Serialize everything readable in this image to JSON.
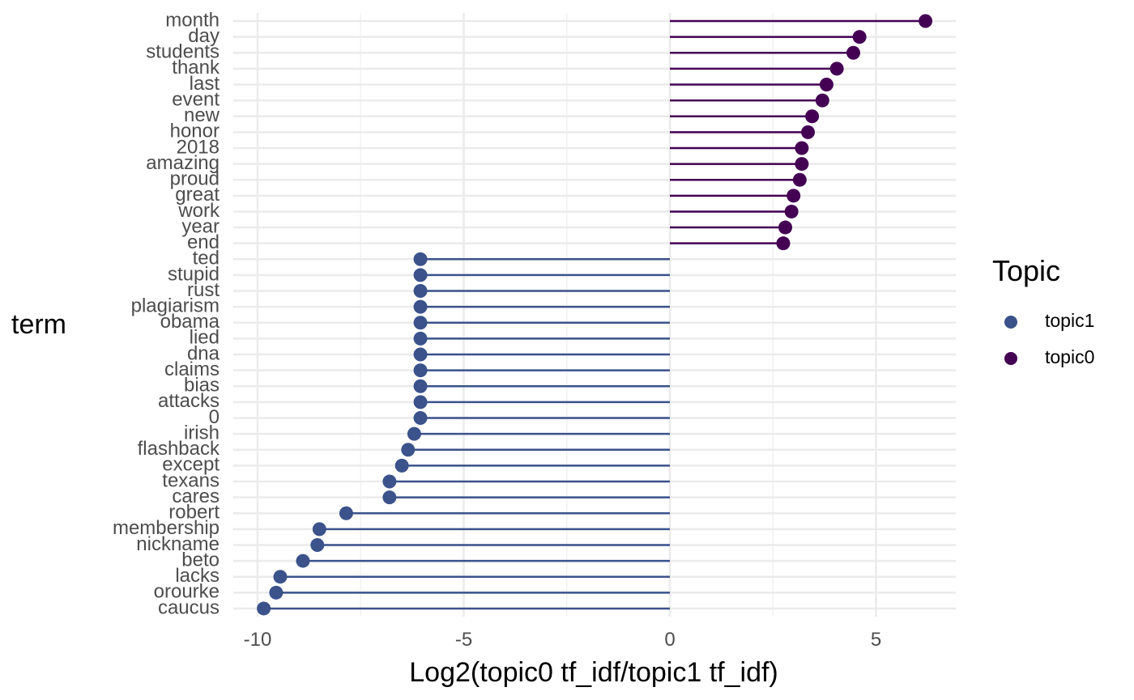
{
  "chart_data": {
    "type": "lollipop",
    "xlabel": "Log2(topic0 tf_idf/topic1 tf_idf)",
    "ylabel": "term",
    "xlim": [
      -10.4,
      7
    ],
    "x_ticks": [
      -10,
      -5,
      0,
      5
    ],
    "x_tick_labels": [
      "-10",
      "-5",
      "0",
      "5"
    ],
    "grid": true,
    "legend": {
      "title": "Topic",
      "position": "right",
      "entries": [
        {
          "name": "topic1",
          "color": "#3B528B"
        },
        {
          "name": "topic0",
          "color": "#440154"
        }
      ]
    },
    "terms": [
      "month",
      "day",
      "students",
      "thank",
      "last",
      "event",
      "new",
      "honor",
      "2018",
      "amazing",
      "proud",
      "great",
      "work",
      "year",
      "end",
      "ted",
      "stupid",
      "rust",
      "plagiarism",
      "obama",
      "lied",
      "dna",
      "claims",
      "bias",
      "attacks",
      "0",
      "irish",
      "flashback",
      "except",
      "texans",
      "cares",
      "robert",
      "membership",
      "nickname",
      "beto",
      "lacks",
      "orourke",
      "caucus"
    ],
    "series": [
      {
        "name": "topic0",
        "color": "#440154",
        "terms": [
          "month",
          "day",
          "students",
          "thank",
          "last",
          "event",
          "new",
          "honor",
          "2018",
          "amazing",
          "proud",
          "great",
          "work",
          "year",
          "end"
        ],
        "values": [
          6.2,
          4.6,
          4.45,
          4.05,
          3.8,
          3.7,
          3.45,
          3.35,
          3.2,
          3.2,
          3.15,
          3.0,
          2.95,
          2.8,
          2.75
        ]
      },
      {
        "name": "topic1",
        "color": "#3B528B",
        "terms": [
          "ted",
          "stupid",
          "rust",
          "plagiarism",
          "obama",
          "lied",
          "dna",
          "claims",
          "bias",
          "attacks",
          "0",
          "irish",
          "flashback",
          "except",
          "texans",
          "cares",
          "robert",
          "membership",
          "nickname",
          "beto",
          "lacks",
          "orourke",
          "caucus"
        ],
        "values": [
          -6.05,
          -6.05,
          -6.05,
          -6.05,
          -6.05,
          -6.05,
          -6.05,
          -6.05,
          -6.05,
          -6.05,
          -6.05,
          -6.2,
          -6.35,
          -6.5,
          -6.8,
          -6.8,
          -7.85,
          -8.5,
          -8.55,
          -8.9,
          -9.45,
          -9.55,
          -9.85
        ]
      }
    ]
  }
}
